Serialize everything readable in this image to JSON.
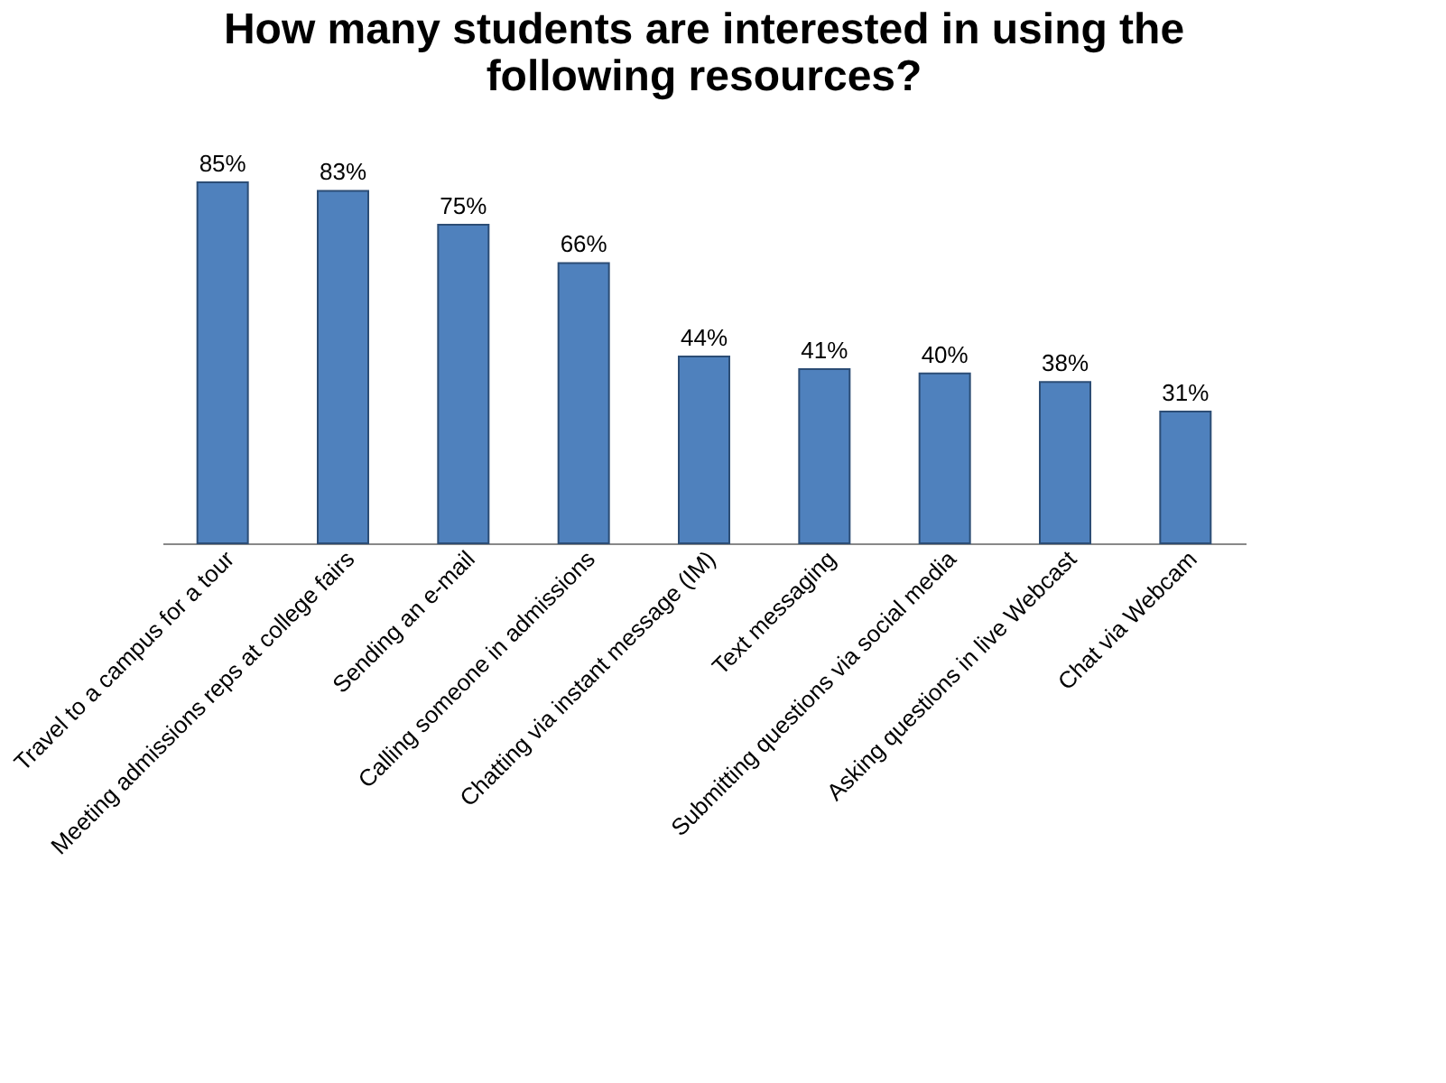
{
  "chart_data": {
    "type": "bar",
    "title": "How many students are interested in using the following resources?",
    "categories": [
      "Travel to a campus for a tour",
      "Meeting admissions reps at college fairs",
      "Sending an e-mail",
      "Calling someone in admissions",
      "Chatting via instant message (IM)",
      "Text messaging",
      "Submitting questions via social media",
      "Asking questions in live Webcast",
      "Chat via Webcam"
    ],
    "values": [
      85,
      83,
      75,
      66,
      44,
      41,
      40,
      38,
      31
    ],
    "value_labels": [
      "85%",
      "83%",
      "75%",
      "66%",
      "44%",
      "41%",
      "40%",
      "38%",
      "31%"
    ],
    "color": "#4f81bd"
  }
}
